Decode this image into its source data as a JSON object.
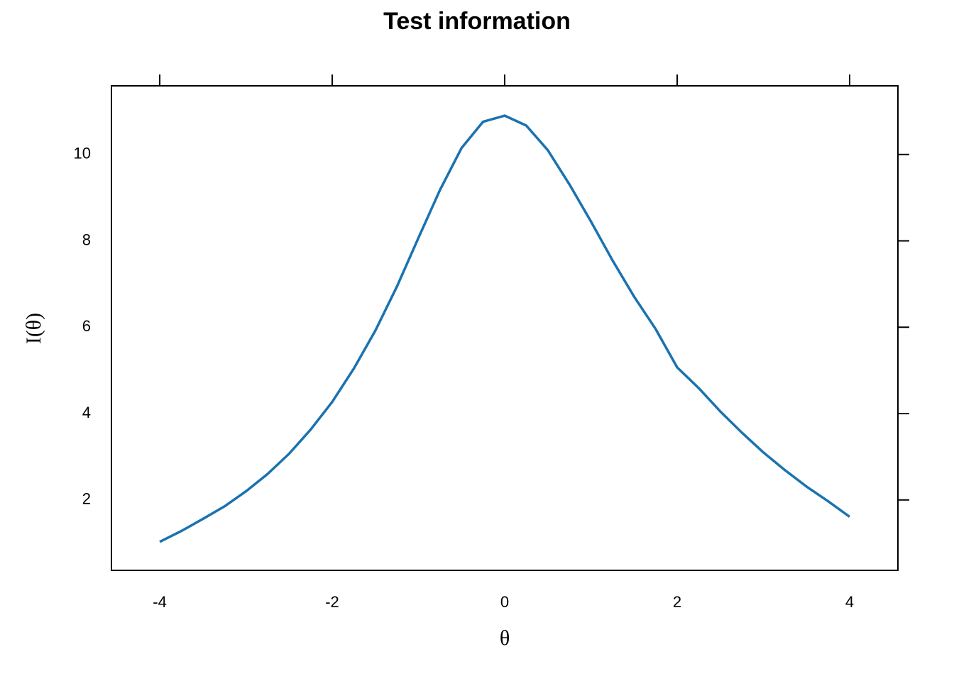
{
  "chart_data": {
    "type": "line",
    "title": "Test information",
    "x_label": "θ",
    "y_label": "I(θ)",
    "x": [
      -4,
      -3.75,
      -3.5,
      -3.25,
      -3,
      -2.75,
      -2.5,
      -2.25,
      -2,
      -1.75,
      -1.5,
      -1.25,
      -1,
      -0.75,
      -0.5,
      -0.25,
      0,
      0.25,
      0.5,
      0.75,
      1,
      1.25,
      1.5,
      1.75,
      2,
      2.25,
      2.5,
      2.75,
      3,
      3.25,
      3.5,
      3.75,
      4
    ],
    "series": [
      {
        "color": "#1a72b0",
        "values": [
          1.03,
          1.28,
          1.56,
          1.85,
          2.2,
          2.6,
          3.07,
          3.63,
          4.27,
          5.04,
          5.92,
          6.94,
          8.07,
          9.18,
          10.15,
          10.76,
          10.9,
          10.67,
          10.1,
          9.31,
          8.45,
          7.55,
          6.71,
          5.96,
          5.07,
          4.59,
          4.05,
          3.56,
          3.1,
          2.69,
          2.31,
          1.97,
          1.61
        ]
      }
    ],
    "xlim": [
      -4.56,
      4.56
    ],
    "ylim": [
      0.37,
      11.59
    ],
    "xticks": [
      -4,
      -2,
      0,
      2,
      4
    ],
    "yticks": [
      2,
      4,
      6,
      8,
      10
    ]
  }
}
